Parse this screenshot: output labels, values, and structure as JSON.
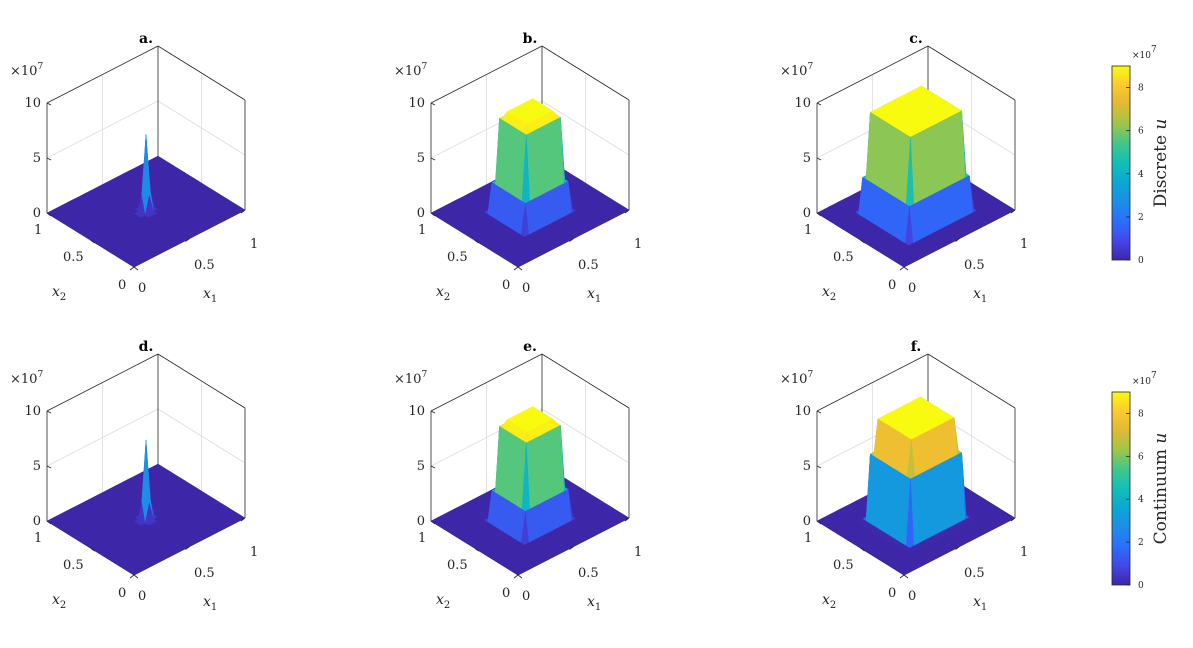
{
  "chart_data": [
    {
      "type": "surface",
      "title": "a.",
      "xlabel": "x",
      "xlabel_sub": "1",
      "ylabel": "x",
      "ylabel_sub": "2",
      "zlim": [
        0,
        10
      ],
      "z_ticks": [
        "0",
        "5",
        "10"
      ],
      "x_ticks": [
        "0",
        "0.5",
        "1"
      ],
      "y_ticks": [
        "0",
        "0.5",
        "1"
      ],
      "multiplier": "×10",
      "multiplier_exp": "7",
      "shape": "peak",
      "center": [
        0.5,
        0.5
      ],
      "half_width": 0.05,
      "peak_value": 7.0
    },
    {
      "type": "surface",
      "title": "b.",
      "xlabel": "x",
      "xlabel_sub": "1",
      "ylabel": "x",
      "ylabel_sub": "2",
      "zlim": [
        0,
        10
      ],
      "z_ticks": [
        "0",
        "5",
        "10"
      ],
      "x_ticks": [
        "0",
        "0.5",
        "1"
      ],
      "y_ticks": [
        "0",
        "0.5",
        "1"
      ],
      "multiplier": "×10",
      "multiplier_exp": "7",
      "shape": "plateau",
      "center": [
        0.5,
        0.5
      ],
      "half_width": 0.15,
      "peak_value": 9.1
    },
    {
      "type": "surface",
      "title": "c.",
      "xlabel": "x",
      "xlabel_sub": "1",
      "ylabel": "x",
      "ylabel_sub": "2",
      "zlim": [
        0,
        10
      ],
      "z_ticks": [
        "0",
        "5",
        "10"
      ],
      "x_ticks": [
        "0",
        "0.5",
        "1"
      ],
      "y_ticks": [
        "0",
        "0.5",
        "1"
      ],
      "multiplier": "×10",
      "multiplier_exp": "7",
      "shape": "plateau",
      "center": [
        0.5,
        0.5
      ],
      "half_width": 0.23,
      "peak_value": 9.2
    },
    {
      "type": "surface",
      "title": "d.",
      "xlabel": "x",
      "xlabel_sub": "1",
      "ylabel": "x",
      "ylabel_sub": "2",
      "zlim": [
        0,
        10
      ],
      "z_ticks": [
        "0",
        "5",
        "10"
      ],
      "x_ticks": [
        "0",
        "0.5",
        "1"
      ],
      "y_ticks": [
        "0",
        "0.5",
        "1"
      ],
      "multiplier": "×10",
      "multiplier_exp": "7",
      "shape": "peak",
      "center": [
        0.5,
        0.5
      ],
      "half_width": 0.05,
      "peak_value": 7.2
    },
    {
      "type": "surface",
      "title": "e.",
      "xlabel": "x",
      "xlabel_sub": "1",
      "ylabel": "x",
      "ylabel_sub": "2",
      "zlim": [
        0,
        10
      ],
      "z_ticks": [
        "0",
        "5",
        "10"
      ],
      "x_ticks": [
        "0",
        "0.5",
        "1"
      ],
      "y_ticks": [
        "0",
        "0.5",
        "1"
      ],
      "multiplier": "×10",
      "multiplier_exp": "7",
      "shape": "plateau",
      "center": [
        0.5,
        0.5
      ],
      "half_width": 0.15,
      "peak_value": 9.1
    },
    {
      "type": "surface",
      "title": "f.",
      "xlabel": "x",
      "xlabel_sub": "1",
      "ylabel": "x",
      "ylabel_sub": "2",
      "zlim": [
        0,
        10
      ],
      "z_ticks": [
        "0",
        "5",
        "10"
      ],
      "x_ticks": [
        "0",
        "0.5",
        "1"
      ],
      "y_ticks": [
        "0",
        "0.5",
        "1"
      ],
      "multiplier": "×10",
      "multiplier_exp": "7",
      "shape": "plateau",
      "center": [
        0.5,
        0.5
      ],
      "half_width": 0.21,
      "peak_value": 9.2
    }
  ],
  "colorbars": [
    {
      "label": "Discrete",
      "label_var": "u",
      "ticks": [
        "0",
        "2",
        "4",
        "6",
        "8"
      ],
      "tick_values": [
        0,
        2,
        4,
        6,
        8
      ],
      "range": [
        0,
        9
      ],
      "multiplier": "×10",
      "multiplier_exp": "7"
    },
    {
      "label": "Continuum",
      "label_var": "u",
      "ticks": [
        "0",
        "2",
        "4",
        "6",
        "8"
      ],
      "tick_values": [
        0,
        2,
        4,
        6,
        8
      ],
      "range": [
        0,
        9
      ],
      "multiplier": "×10",
      "multiplier_exp": "7"
    }
  ],
  "colors": {
    "low": "#3e26a8",
    "mid": "#13beb8",
    "high": "#f9fb0e",
    "axis": "#262626",
    "grid": "#dcdcdc"
  }
}
